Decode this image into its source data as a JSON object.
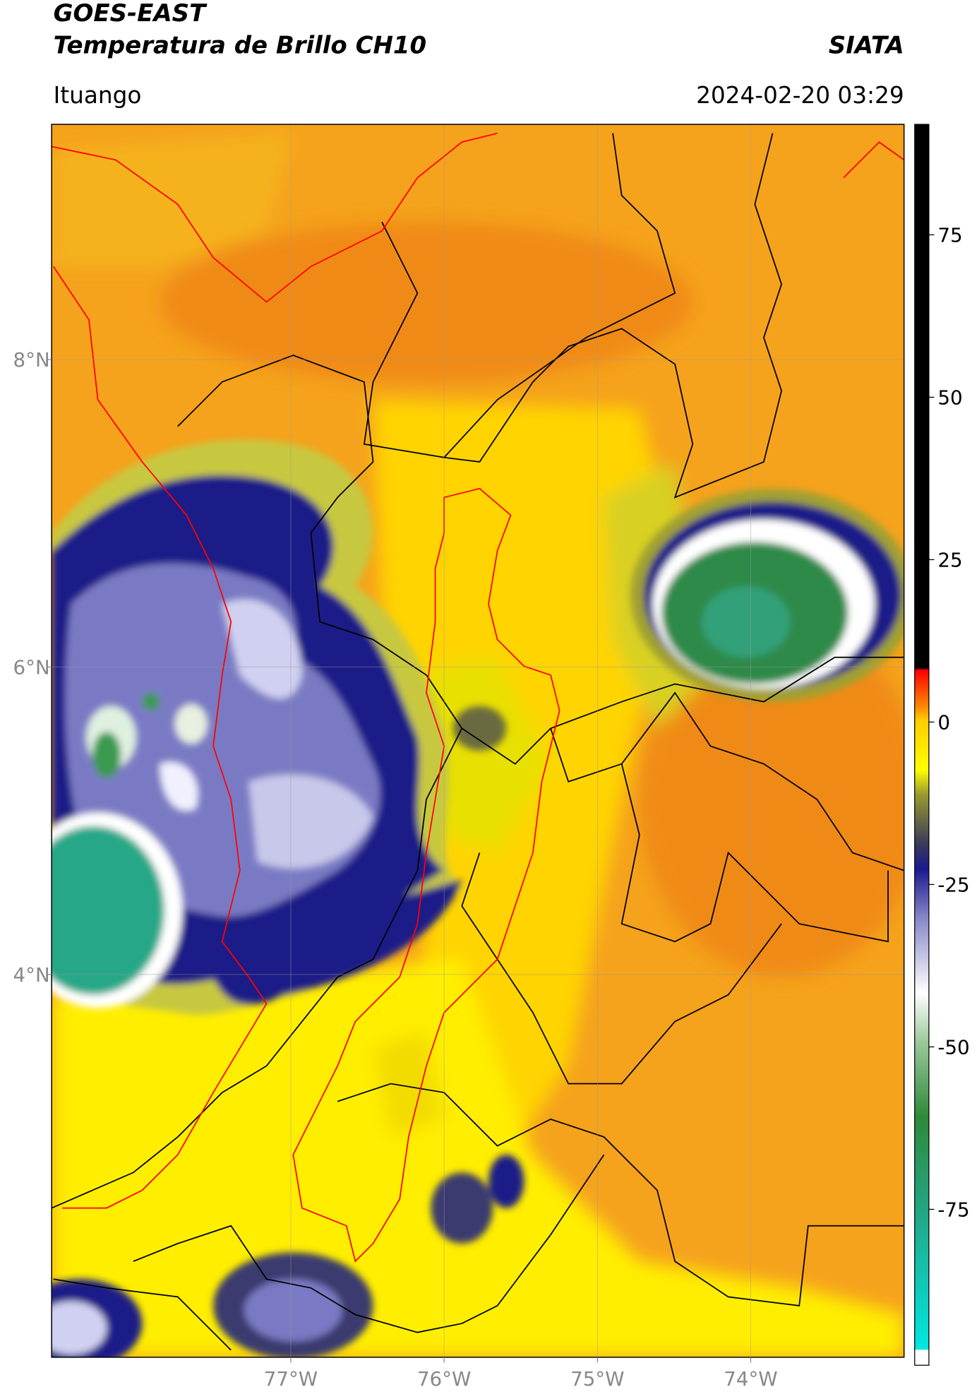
{
  "header": {
    "title": "GOES-EAST",
    "subtitle": "Temperatura de Brillo CH10",
    "source": "SIATA",
    "location": "Ituango",
    "timestamp": "2024-02-20 03:29"
  },
  "map": {
    "xlim": [
      -78.56,
      -73.0
    ],
    "ylim": [
      1.51,
      9.53
    ],
    "grid": true,
    "xticks": [
      {
        "value": -77,
        "label": "77°W"
      },
      {
        "value": -76,
        "label": "76°W"
      },
      {
        "value": -75,
        "label": "75°W"
      },
      {
        "value": -74,
        "label": "74°W"
      }
    ],
    "yticks": [
      {
        "value": 8,
        "label": "8°N"
      },
      {
        "value": 6,
        "label": "6°N"
      },
      {
        "value": 4,
        "label": "4°N"
      }
    ]
  },
  "colorbar": {
    "lim": [
      -99,
      92
    ],
    "ticks": [
      75,
      50,
      25,
      0,
      -25,
      -50,
      -75
    ]
  }
}
